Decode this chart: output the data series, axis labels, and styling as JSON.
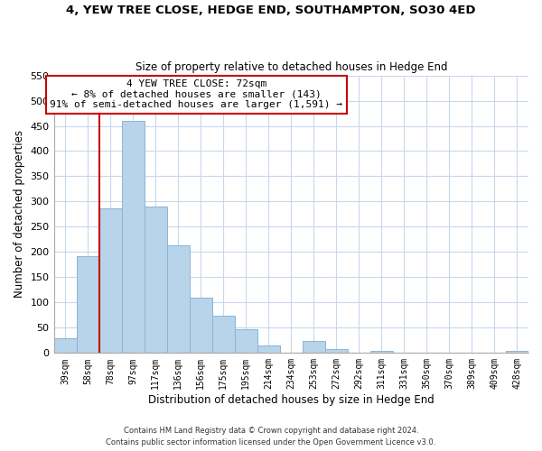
{
  "title": "4, YEW TREE CLOSE, HEDGE END, SOUTHAMPTON, SO30 4ED",
  "subtitle": "Size of property relative to detached houses in Hedge End",
  "xlabel": "Distribution of detached houses by size in Hedge End",
  "ylabel": "Number of detached properties",
  "bar_color": "#b8d4ea",
  "bar_edge_color": "#8ab4d8",
  "categories": [
    "39sqm",
    "58sqm",
    "78sqm",
    "97sqm",
    "117sqm",
    "136sqm",
    "156sqm",
    "175sqm",
    "195sqm",
    "214sqm",
    "234sqm",
    "253sqm",
    "272sqm",
    "292sqm",
    "311sqm",
    "331sqm",
    "350sqm",
    "370sqm",
    "389sqm",
    "409sqm",
    "428sqm"
  ],
  "values": [
    30,
    192,
    287,
    460,
    290,
    213,
    110,
    74,
    47,
    14,
    0,
    23,
    8,
    0,
    5,
    0,
    0,
    0,
    0,
    0,
    4
  ],
  "ylim": [
    0,
    550
  ],
  "yticks": [
    0,
    50,
    100,
    150,
    200,
    250,
    300,
    350,
    400,
    450,
    500,
    550
  ],
  "property_line_label": "4 YEW TREE CLOSE: 72sqm",
  "annotation_line1": "← 8% of detached houses are smaller (143)",
  "annotation_line2": "91% of semi-detached houses are larger (1,591) →",
  "annotation_box_color": "#ffffff",
  "annotation_box_edge": "#cc0000",
  "red_line_color": "#cc0000",
  "footer1": "Contains HM Land Registry data © Crown copyright and database right 2024.",
  "footer2": "Contains public sector information licensed under the Open Government Licence v3.0.",
  "background_color": "#ffffff",
  "grid_color": "#c8d8ec"
}
